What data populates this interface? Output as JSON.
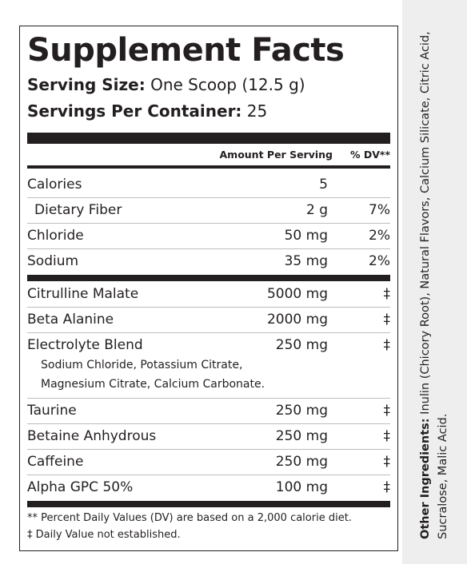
{
  "facts": {
    "title": "Supplement Facts",
    "serving_size_label": "Serving Size:",
    "serving_size_value": " One Scoop (12.5 g)",
    "servings_per_container_label": "Servings Per Container:",
    "servings_per_container_value": " 25",
    "header_amount": "Amount Per Serving",
    "header_dv": "% DV**",
    "rows_group1": [
      {
        "name": "Calories",
        "amount": "5",
        "dv": ""
      },
      {
        "name": "Dietary Fiber",
        "amount": "2 g",
        "dv": "7%"
      },
      {
        "name": "Chloride",
        "amount": "50 mg",
        "dv": "2%"
      },
      {
        "name": "Sodium",
        "amount": "35 mg",
        "dv": "2%"
      }
    ],
    "rows_group2": [
      {
        "name": "Citrulline Malate",
        "amount": "5000 mg",
        "dv": "‡"
      },
      {
        "name": "Beta Alanine",
        "amount": "2000 mg",
        "dv": "‡"
      },
      {
        "name": "Electrolyte Blend",
        "amount": "250 mg",
        "dv": "‡"
      }
    ],
    "blend_components": [
      "Sodium Chloride, Potassium Citrate,",
      "Magnesium Citrate, Calcium Carbonate."
    ],
    "rows_group3": [
      {
        "name": "Taurine",
        "amount": "250 mg",
        "dv": "‡"
      },
      {
        "name": "Betaine Anhydrous",
        "amount": "250 mg",
        "dv": "‡"
      },
      {
        "name": "Caffeine",
        "amount": "250 mg",
        "dv": "‡"
      },
      {
        "name": "Alpha GPC 50%",
        "amount": "100 mg",
        "dv": "‡"
      }
    ],
    "footnote_dv": "** Percent Daily Values (DV) are based on a 2,000 calorie diet.",
    "footnote_na": "‡ Daily Value not established."
  },
  "other_ingredients": {
    "label": "Other Ingredients:",
    "text": " Inulin (Chicory Root), Natural Flavors, Calcium Silicate, Citric Acid, Sucralose, Malic Acid."
  }
}
